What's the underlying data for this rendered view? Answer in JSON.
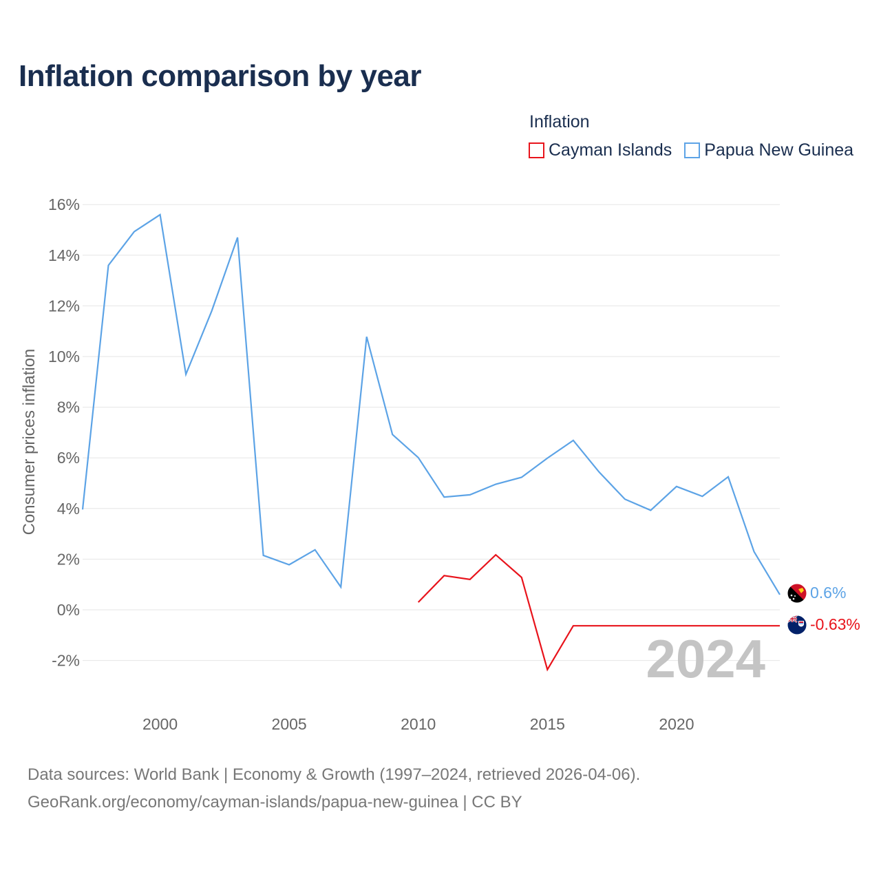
{
  "title": "Inflation comparison by year",
  "legend": {
    "title": "Inflation",
    "items": [
      {
        "label": "Cayman Islands",
        "color": "#e8131b"
      },
      {
        "label": "Papua New Guinea",
        "color": "#5ca3e6"
      }
    ]
  },
  "source": {
    "line1": "Data sources: World Bank | Economy & Growth (1997–2024, retrieved 2026-04-06).",
    "line2": "GeoRank.org/economy/cayman-islands/papua-new-guinea | CC BY"
  },
  "chart_data": {
    "type": "line",
    "title": "Inflation comparison by year",
    "xlabel": "",
    "ylabel": "Consumer prices inflation",
    "xlim": [
      1997,
      2024
    ],
    "ylim": [
      -3.0,
      16.5
    ],
    "xticks": [
      2000,
      2005,
      2010,
      2015,
      2020
    ],
    "yticks": [
      16,
      14,
      12,
      10,
      8,
      6,
      4,
      2,
      0,
      -2
    ],
    "ytick_labels": [
      "16%",
      "14%",
      "12%",
      "10%",
      "8%",
      "6%",
      "4%",
      "2%",
      "0%",
      "-2%"
    ],
    "grid": true,
    "current_year": "2024",
    "series": [
      {
        "name": "Papua New Guinea",
        "color": "#5ca3e6",
        "end_label": "0.6%",
        "flag": "papua-new-guinea-flag",
        "points": [
          [
            1997,
            3.96
          ],
          [
            1998,
            13.6
          ],
          [
            1999,
            14.93
          ],
          [
            2000,
            15.6
          ],
          [
            2001,
            9.3
          ],
          [
            2002,
            11.8
          ],
          [
            2003,
            14.7
          ],
          [
            2004,
            2.15
          ],
          [
            2005,
            1.78
          ],
          [
            2006,
            2.37
          ],
          [
            2007,
            0.9
          ],
          [
            2008,
            10.78
          ],
          [
            2009,
            6.92
          ],
          [
            2010,
            6.01
          ],
          [
            2011,
            4.45
          ],
          [
            2012,
            4.54
          ],
          [
            2013,
            4.96
          ],
          [
            2014,
            5.23
          ],
          [
            2015,
            5.99
          ],
          [
            2016,
            6.69
          ],
          [
            2017,
            5.44
          ],
          [
            2018,
            4.37
          ],
          [
            2019,
            3.93
          ],
          [
            2020,
            4.87
          ],
          [
            2021,
            4.48
          ],
          [
            2022,
            5.25
          ],
          [
            2023,
            2.3
          ],
          [
            2024,
            0.6
          ]
        ]
      },
      {
        "name": "Cayman Islands",
        "color": "#e8131b",
        "end_label": "-0.63%",
        "flag": "cayman-islands-flag",
        "points": [
          [
            2010,
            0.3
          ],
          [
            2011,
            1.35
          ],
          [
            2012,
            1.2
          ],
          [
            2013,
            2.17
          ],
          [
            2014,
            1.28
          ],
          [
            2015,
            -2.36
          ],
          [
            2016,
            -0.63
          ],
          [
            2017,
            -0.63
          ],
          [
            2018,
            -0.63
          ],
          [
            2019,
            -0.63
          ],
          [
            2020,
            -0.63
          ],
          [
            2021,
            -0.63
          ],
          [
            2022,
            -0.63
          ],
          [
            2023,
            -0.63
          ],
          [
            2024,
            -0.63
          ]
        ]
      }
    ]
  }
}
